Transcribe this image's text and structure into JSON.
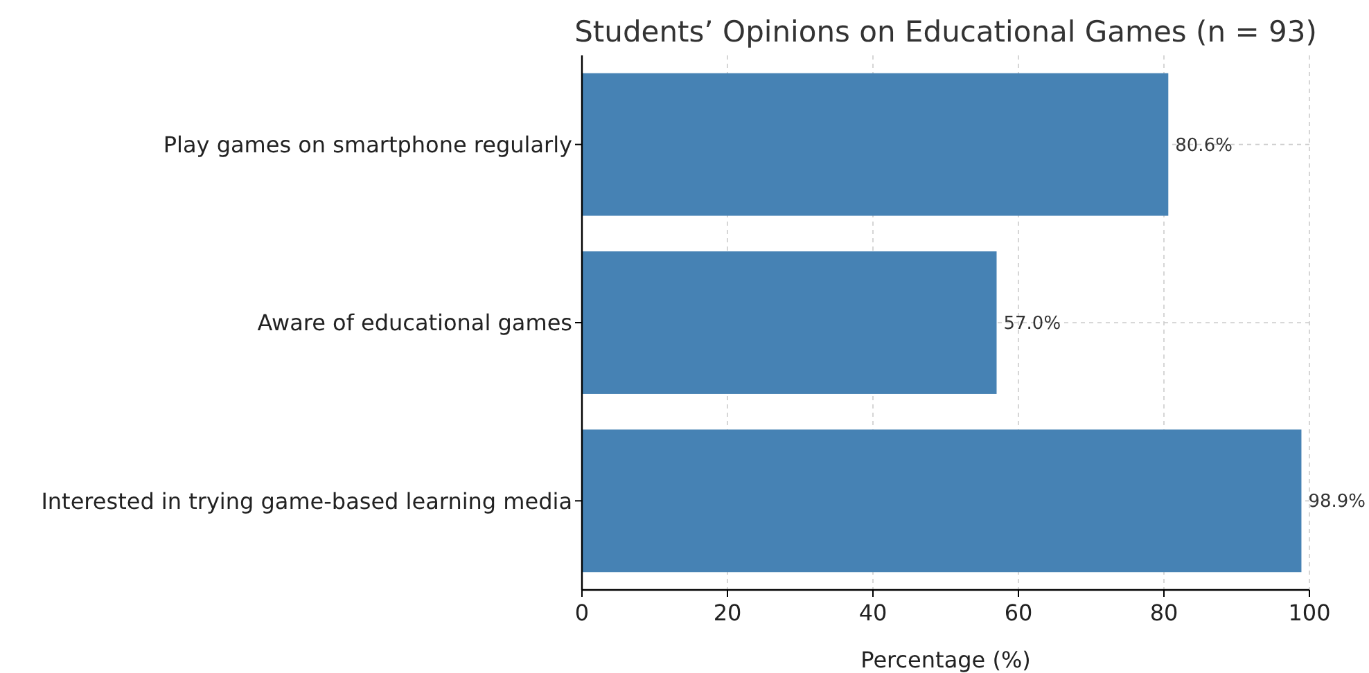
{
  "chart_data": {
    "type": "bar",
    "orientation": "horizontal",
    "title": "Students’ Opinions on Educational Games (n = 93)",
    "xlabel": "Percentage (%)",
    "categories": [
      "Play games on smartphone regularly",
      "Aware of educational games",
      "Interested in trying game-based learning media"
    ],
    "values": [
      80.6,
      57.0,
      98.9
    ],
    "value_labels": [
      "80.6%",
      "57.0%",
      "98.9%"
    ],
    "color": "#4682b4",
    "xlim": [
      0,
      100
    ],
    "xticks": [
      0,
      20,
      40,
      60,
      80,
      100
    ],
    "grid": true
  }
}
